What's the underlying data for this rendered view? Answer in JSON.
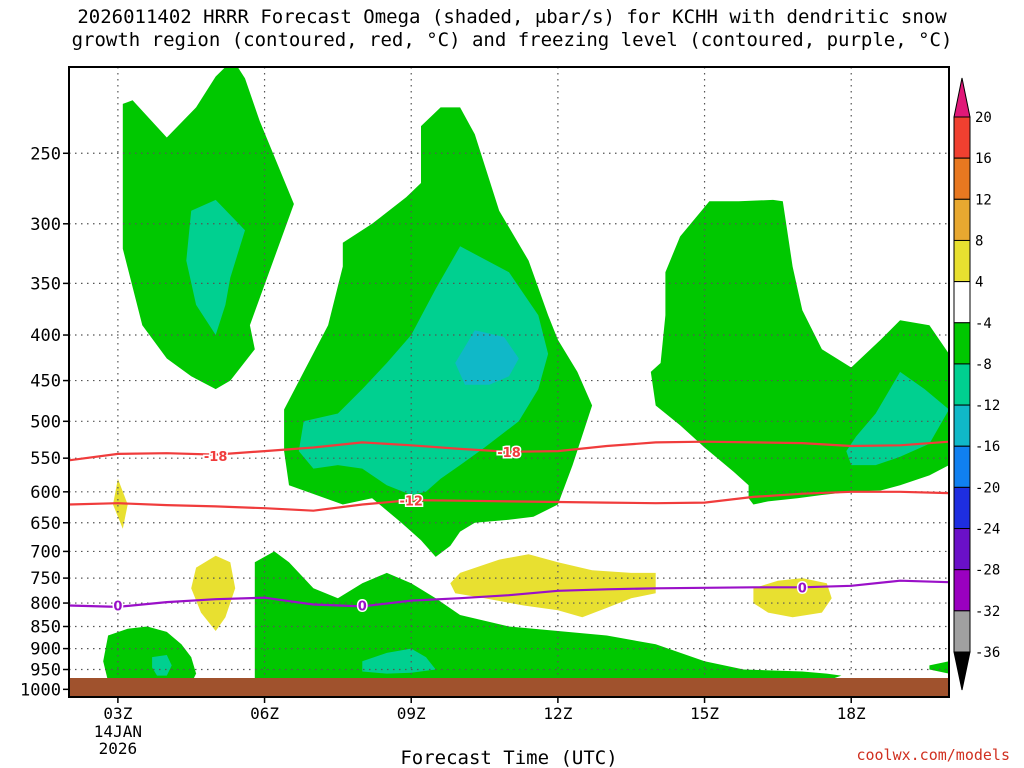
{
  "title_line1": "2026011402 HRRR Forecast Omega (shaded, μbar/s) for KCHH with dendritic snow",
  "title_line2": "growth region (contoured, red, °C) and freezing level (contoured, purple, °C)",
  "credit": "coolwx.com/models",
  "chart_data": {
    "type": "time-height cross-section",
    "title": "2026011402 HRRR Forecast Omega (shaded, μbar/s) for KCHH with dendritic snow growth region (contoured, red, °C) and freezing level (contoured, purple, °C)",
    "xlabel": "Forecast Time (UTC)",
    "xlim": [
      2,
      20
    ],
    "x_ticks": [
      {
        "value": 3,
        "label": "03Z",
        "sub": [
          "14JAN",
          "2026"
        ]
      },
      {
        "value": 6,
        "label": "06Z"
      },
      {
        "value": 9,
        "label": "09Z"
      },
      {
        "value": 12,
        "label": "12Z"
      },
      {
        "value": 15,
        "label": "15Z"
      },
      {
        "value": 18,
        "label": "18Z"
      }
    ],
    "y_scale": "log-pressure (inverted)",
    "ylim": [
      1020,
      200
    ],
    "y_ticks": [
      250,
      300,
      350,
      400,
      450,
      500,
      550,
      600,
      650,
      700,
      750,
      800,
      850,
      900,
      950,
      1000
    ],
    "grid": true,
    "colorbar": {
      "levels": [
        -36,
        -32,
        -28,
        -24,
        -20,
        -16,
        -12,
        -8,
        -4,
        4,
        8,
        12,
        16,
        20
      ],
      "colors": [
        "#000000",
        "#a0a0a0",
        "#9a00c0",
        "#6a10c8",
        "#1e2ee0",
        "#1080f0",
        "#10b8c8",
        "#00d090",
        "#00c800",
        "#ffffff",
        "#e8e030",
        "#e8a830",
        "#e87820",
        "#f04030",
        "#e01878"
      ]
    },
    "surface_color": "#a0522d",
    "contours": [
      {
        "name": "-18",
        "color": "#f03c3c",
        "label_at": [
          [
            5,
            547
          ],
          [
            11,
            541
          ]
        ],
        "x": [
          2,
          3,
          4,
          5,
          6,
          7,
          8,
          9,
          10,
          11,
          12,
          13,
          14,
          15,
          16,
          17,
          18,
          19,
          20
        ],
        "p": [
          553,
          544,
          543,
          545,
          540,
          535,
          528,
          532,
          537,
          541,
          540,
          533,
          528,
          527,
          528,
          529,
          533,
          532,
          527
        ]
      },
      {
        "name": "-12",
        "color": "#f03c3c",
        "label_at": [
          [
            9,
            614
          ]
        ],
        "x": [
          2,
          3,
          4,
          5,
          6,
          7,
          8,
          9,
          10,
          11,
          12,
          13,
          14,
          15,
          16,
          17,
          18,
          19,
          20
        ],
        "p": [
          620,
          618,
          621,
          623,
          626,
          630,
          620,
          613,
          614,
          615,
          616,
          617,
          618,
          617,
          608,
          603,
          600,
          600,
          602
        ]
      },
      {
        "name": "0",
        "color": "#9a10c8",
        "label_at": [
          [
            3,
            805
          ],
          [
            8,
            805
          ],
          [
            17,
            768
          ]
        ],
        "x": [
          2,
          3,
          4,
          5,
          6,
          7,
          8,
          9,
          10,
          11,
          12,
          13,
          14,
          15,
          16,
          17,
          18,
          19,
          20
        ],
        "p": [
          805,
          808,
          798,
          792,
          789,
          803,
          807,
          795,
          790,
          784,
          775,
          772,
          770,
          769,
          768,
          768,
          765,
          755,
          758
        ]
      }
    ],
    "shaded_regions": [
      {
        "value_range": [
          -8,
          -4
        ],
        "color": "#00c800",
        "pts": [
          [
            3.1,
            220
          ],
          [
            3.3,
            218
          ],
          [
            4.0,
            240
          ],
          [
            4.6,
            222
          ],
          [
            5.0,
            205
          ],
          [
            5.2,
            200
          ],
          [
            5.4,
            198
          ],
          [
            5.6,
            206
          ],
          [
            5.9,
            230
          ],
          [
            6.6,
            285
          ],
          [
            5.7,
            390
          ],
          [
            5.8,
            415
          ],
          [
            5.3,
            450
          ],
          [
            5.0,
            460
          ],
          [
            4.5,
            445
          ],
          [
            4.0,
            425
          ],
          [
            3.5,
            390
          ],
          [
            3.1,
            320
          ]
        ]
      },
      {
        "value_range": [
          -12,
          -8
        ],
        "color": "#00d090",
        "pts": [
          [
            4.5,
            290
          ],
          [
            5.0,
            282
          ],
          [
            5.6,
            305
          ],
          [
            5.3,
            345
          ],
          [
            5.2,
            370
          ],
          [
            5.0,
            400
          ],
          [
            4.6,
            370
          ],
          [
            4.4,
            330
          ]
        ]
      },
      {
        "value_range": [
          -8,
          -4
        ],
        "color": "#00c800",
        "pts": [
          [
            9.2,
            233
          ],
          [
            9.6,
            222
          ],
          [
            10.0,
            222
          ],
          [
            10.3,
            238
          ],
          [
            10.8,
            290
          ],
          [
            11.4,
            330
          ],
          [
            11.8,
            380
          ],
          [
            12.0,
            405
          ],
          [
            12.4,
            440
          ],
          [
            12.7,
            480
          ],
          [
            12.3,
            560
          ],
          [
            12.0,
            620
          ],
          [
            11.5,
            640
          ],
          [
            11.0,
            645
          ],
          [
            10.3,
            650
          ],
          [
            10.0,
            665
          ],
          [
            9.8,
            690
          ],
          [
            9.5,
            710
          ],
          [
            9.2,
            680
          ],
          [
            8.8,
            650
          ],
          [
            8.2,
            610
          ],
          [
            7.6,
            620
          ],
          [
            6.5,
            590
          ],
          [
            6.4,
            540
          ],
          [
            6.4,
            485
          ],
          [
            6.8,
            440
          ],
          [
            7.3,
            390
          ],
          [
            7.6,
            335
          ],
          [
            7.6,
            315
          ],
          [
            8.2,
            300
          ],
          [
            8.9,
            280
          ],
          [
            9.2,
            270
          ],
          [
            9.2,
            250
          ]
        ]
      },
      {
        "value_range": [
          -12,
          -8
        ],
        "color": "#00d090",
        "pts": [
          [
            10.0,
            318
          ],
          [
            11.0,
            340
          ],
          [
            11.6,
            380
          ],
          [
            11.8,
            420
          ],
          [
            11.6,
            460
          ],
          [
            11.2,
            500
          ],
          [
            10.5,
            535
          ],
          [
            10.0,
            560
          ],
          [
            9.6,
            580
          ],
          [
            9.3,
            600
          ],
          [
            9.0,
            605
          ],
          [
            8.5,
            590
          ],
          [
            8.0,
            565
          ],
          [
            7.5,
            560
          ],
          [
            7.0,
            565
          ],
          [
            6.7,
            540
          ],
          [
            6.8,
            500
          ],
          [
            7.5,
            490
          ],
          [
            8.0,
            460
          ],
          [
            8.5,
            430
          ],
          [
            9.0,
            400
          ],
          [
            9.5,
            355
          ]
        ]
      },
      {
        "value_range": [
          -16,
          -12
        ],
        "color": "#10b8c8",
        "pts": [
          [
            10.3,
            395
          ],
          [
            10.9,
            402
          ],
          [
            11.2,
            425
          ],
          [
            11.0,
            445
          ],
          [
            10.6,
            455
          ],
          [
            10.1,
            455
          ],
          [
            9.9,
            430
          ]
        ]
      },
      {
        "value_range": [
          -8,
          -4
        ],
        "color": "#00c800",
        "pts": [
          [
            15.1,
            283
          ],
          [
            15.7,
            283
          ],
          [
            16.4,
            282
          ],
          [
            16.6,
            283
          ],
          [
            16.8,
            335
          ],
          [
            17.0,
            375
          ],
          [
            17.4,
            415
          ],
          [
            18.0,
            435
          ],
          [
            18.6,
            405
          ],
          [
            19.0,
            385
          ],
          [
            19.6,
            390
          ],
          [
            20.0,
            420
          ],
          [
            20.0,
            560
          ],
          [
            19.6,
            575
          ],
          [
            19.0,
            590
          ],
          [
            18.6,
            598
          ],
          [
            18.0,
            600
          ],
          [
            17.4,
            605
          ],
          [
            16.9,
            610
          ],
          [
            16.3,
            615
          ],
          [
            16.0,
            620
          ],
          [
            15.9,
            610
          ],
          [
            15.9,
            590
          ],
          [
            15.6,
            570
          ],
          [
            15.0,
            535
          ],
          [
            14.5,
            505
          ],
          [
            14.0,
            480
          ],
          [
            13.9,
            440
          ],
          [
            14.1,
            430
          ],
          [
            14.2,
            380
          ],
          [
            14.2,
            340
          ],
          [
            14.5,
            310
          ]
        ]
      },
      {
        "value_range": [
          -12,
          -8
        ],
        "color": "#00d090",
        "pts": [
          [
            19.0,
            440
          ],
          [
            19.5,
            460
          ],
          [
            20.0,
            485
          ],
          [
            19.6,
            530
          ],
          [
            19.0,
            548
          ],
          [
            18.5,
            560
          ],
          [
            18.0,
            560
          ],
          [
            17.9,
            540
          ],
          [
            18.1,
            520
          ],
          [
            18.5,
            490
          ]
        ]
      },
      {
        "value_range": [
          -8,
          -4
        ],
        "color": "#00c800",
        "pts": [
          [
            5.8,
            720
          ],
          [
            6.2,
            700
          ],
          [
            6.5,
            720
          ],
          [
            7.0,
            770
          ],
          [
            7.5,
            790
          ],
          [
            8.0,
            760
          ],
          [
            8.5,
            740
          ],
          [
            9.0,
            760
          ],
          [
            9.5,
            790
          ],
          [
            10.0,
            825
          ],
          [
            11.0,
            850
          ],
          [
            12.0,
            860
          ],
          [
            13.0,
            870
          ],
          [
            14.0,
            890
          ],
          [
            15.0,
            930
          ],
          [
            15.8,
            950
          ],
          [
            17.0,
            955
          ],
          [
            17.5,
            960
          ],
          [
            17.8,
            965
          ],
          [
            17.5,
            978
          ],
          [
            16.5,
            985
          ],
          [
            15.0,
            983
          ],
          [
            14.0,
            985
          ],
          [
            13.0,
            988
          ],
          [
            12.0,
            995
          ],
          [
            11.0,
            998
          ],
          [
            10.0,
            1000
          ],
          [
            9.0,
            1000
          ],
          [
            8.0,
            998
          ],
          [
            7.0,
            995
          ],
          [
            6.0,
            998
          ],
          [
            5.8,
            995
          ],
          [
            5.8,
            900
          ]
        ]
      },
      {
        "value_range": [
          -8,
          -4
        ],
        "color": "#00c800",
        "pts": [
          [
            2.8,
            870
          ],
          [
            3.2,
            855
          ],
          [
            3.6,
            850
          ],
          [
            4.0,
            862
          ],
          [
            4.3,
            890
          ],
          [
            4.5,
            920
          ],
          [
            4.6,
            960
          ],
          [
            4.5,
            985
          ],
          [
            4.0,
            990
          ],
          [
            3.5,
            988
          ],
          [
            3.0,
            985
          ],
          [
            2.8,
            980
          ],
          [
            2.7,
            930
          ]
        ]
      },
      {
        "value_range": [
          -12,
          -8
        ],
        "color": "#00d090",
        "pts": [
          [
            8.0,
            930
          ],
          [
            8.5,
            910
          ],
          [
            9.0,
            900
          ],
          [
            9.3,
            920
          ],
          [
            9.5,
            950
          ],
          [
            9.0,
            958
          ],
          [
            8.5,
            960
          ],
          [
            8.0,
            955
          ]
        ]
      },
      {
        "value_range": [
          -12,
          -8
        ],
        "color": "#00d090",
        "pts": [
          [
            3.7,
            920
          ],
          [
            4.0,
            915
          ],
          [
            4.1,
            940
          ],
          [
            4.0,
            965
          ],
          [
            3.8,
            965
          ],
          [
            3.7,
            945
          ]
        ]
      },
      {
        "value_range": [
          -8,
          -4
        ],
        "color": "#00c800",
        "pts": [
          [
            19.6,
            940
          ],
          [
            20.0,
            930
          ],
          [
            20.0,
            960
          ],
          [
            19.6,
            950
          ]
        ]
      },
      {
        "value_range": [
          4,
          8
        ],
        "color": "#e8e030",
        "pts": [
          [
            3.0,
            580
          ],
          [
            3.2,
            620
          ],
          [
            3.1,
            660
          ],
          [
            2.9,
            620
          ]
        ]
      },
      {
        "value_range": [
          4,
          8
        ],
        "color": "#e8e030",
        "pts": [
          [
            4.6,
            730
          ],
          [
            5.0,
            708
          ],
          [
            5.3,
            720
          ],
          [
            5.4,
            770
          ],
          [
            5.2,
            830
          ],
          [
            5.0,
            860
          ],
          [
            4.7,
            820
          ],
          [
            4.5,
            770
          ]
        ]
      },
      {
        "value_range": [
          4,
          8
        ],
        "color": "#e8e030",
        "pts": [
          [
            10.0,
            740
          ],
          [
            10.8,
            715
          ],
          [
            11.4,
            705
          ],
          [
            12.0,
            720
          ],
          [
            12.7,
            735
          ],
          [
            13.5,
            740
          ],
          [
            14.0,
            740
          ],
          [
            14.0,
            780
          ],
          [
            13.5,
            790
          ],
          [
            13.0,
            810
          ],
          [
            12.5,
            830
          ],
          [
            12.0,
            815
          ],
          [
            11.3,
            805
          ],
          [
            10.5,
            790
          ],
          [
            9.9,
            780
          ],
          [
            9.8,
            760
          ]
        ]
      },
      {
        "value_range": [
          4,
          8
        ],
        "color": "#e8e030",
        "pts": [
          [
            16.0,
            770
          ],
          [
            16.5,
            755
          ],
          [
            17.0,
            750
          ],
          [
            17.5,
            760
          ],
          [
            17.6,
            790
          ],
          [
            17.4,
            820
          ],
          [
            16.8,
            830
          ],
          [
            16.3,
            820
          ],
          [
            16.0,
            800
          ]
        ]
      }
    ]
  }
}
